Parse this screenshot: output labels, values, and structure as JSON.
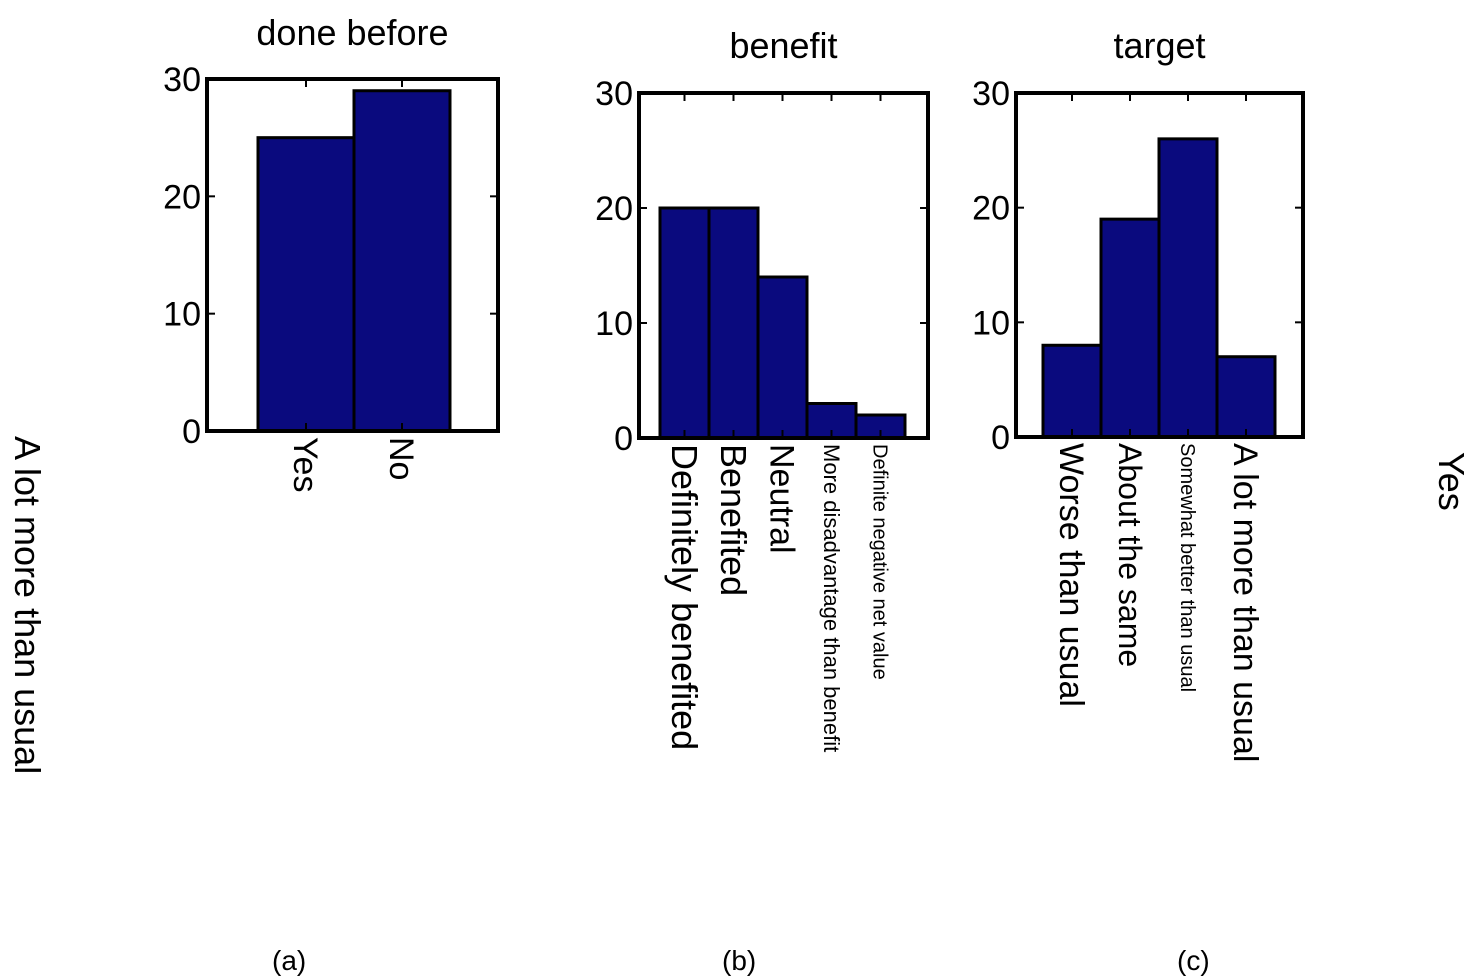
{
  "chart_data": [
    {
      "type": "bar",
      "title": "done before",
      "categories": [
        "Yes",
        "No"
      ],
      "values": [
        25,
        29
      ],
      "ylim": [
        0,
        30
      ],
      "yticks": [
        0,
        10,
        20,
        30
      ],
      "grid": false,
      "bar_color": "#0a0a7e",
      "caption": "(a)"
    },
    {
      "type": "bar",
      "title": "benefit",
      "categories": [
        "Definitely benefited",
        "Benefited",
        "Neutral",
        "More disadvantage than benefit",
        "Definite negative net value"
      ],
      "values": [
        20,
        20,
        14,
        3,
        2
      ],
      "ylim": [
        0,
        30
      ],
      "yticks": [
        0,
        10,
        20,
        30
      ],
      "grid": false,
      "bar_color": "#0a0a7e",
      "caption": "(b)"
    },
    {
      "type": "bar",
      "title": "target",
      "categories": [
        "Worse than usual",
        "About the same",
        "Somewhat better than usual",
        "A lot more than usual"
      ],
      "values": [
        8,
        19,
        26,
        7
      ],
      "ylim": [
        0,
        30
      ],
      "yticks": [
        0,
        10,
        20,
        30
      ],
      "grid": false,
      "bar_color": "#0a0a7e",
      "caption": "(c)"
    }
  ],
  "stray_labels": {
    "left": "A lot more than usual",
    "right": "Yes"
  }
}
